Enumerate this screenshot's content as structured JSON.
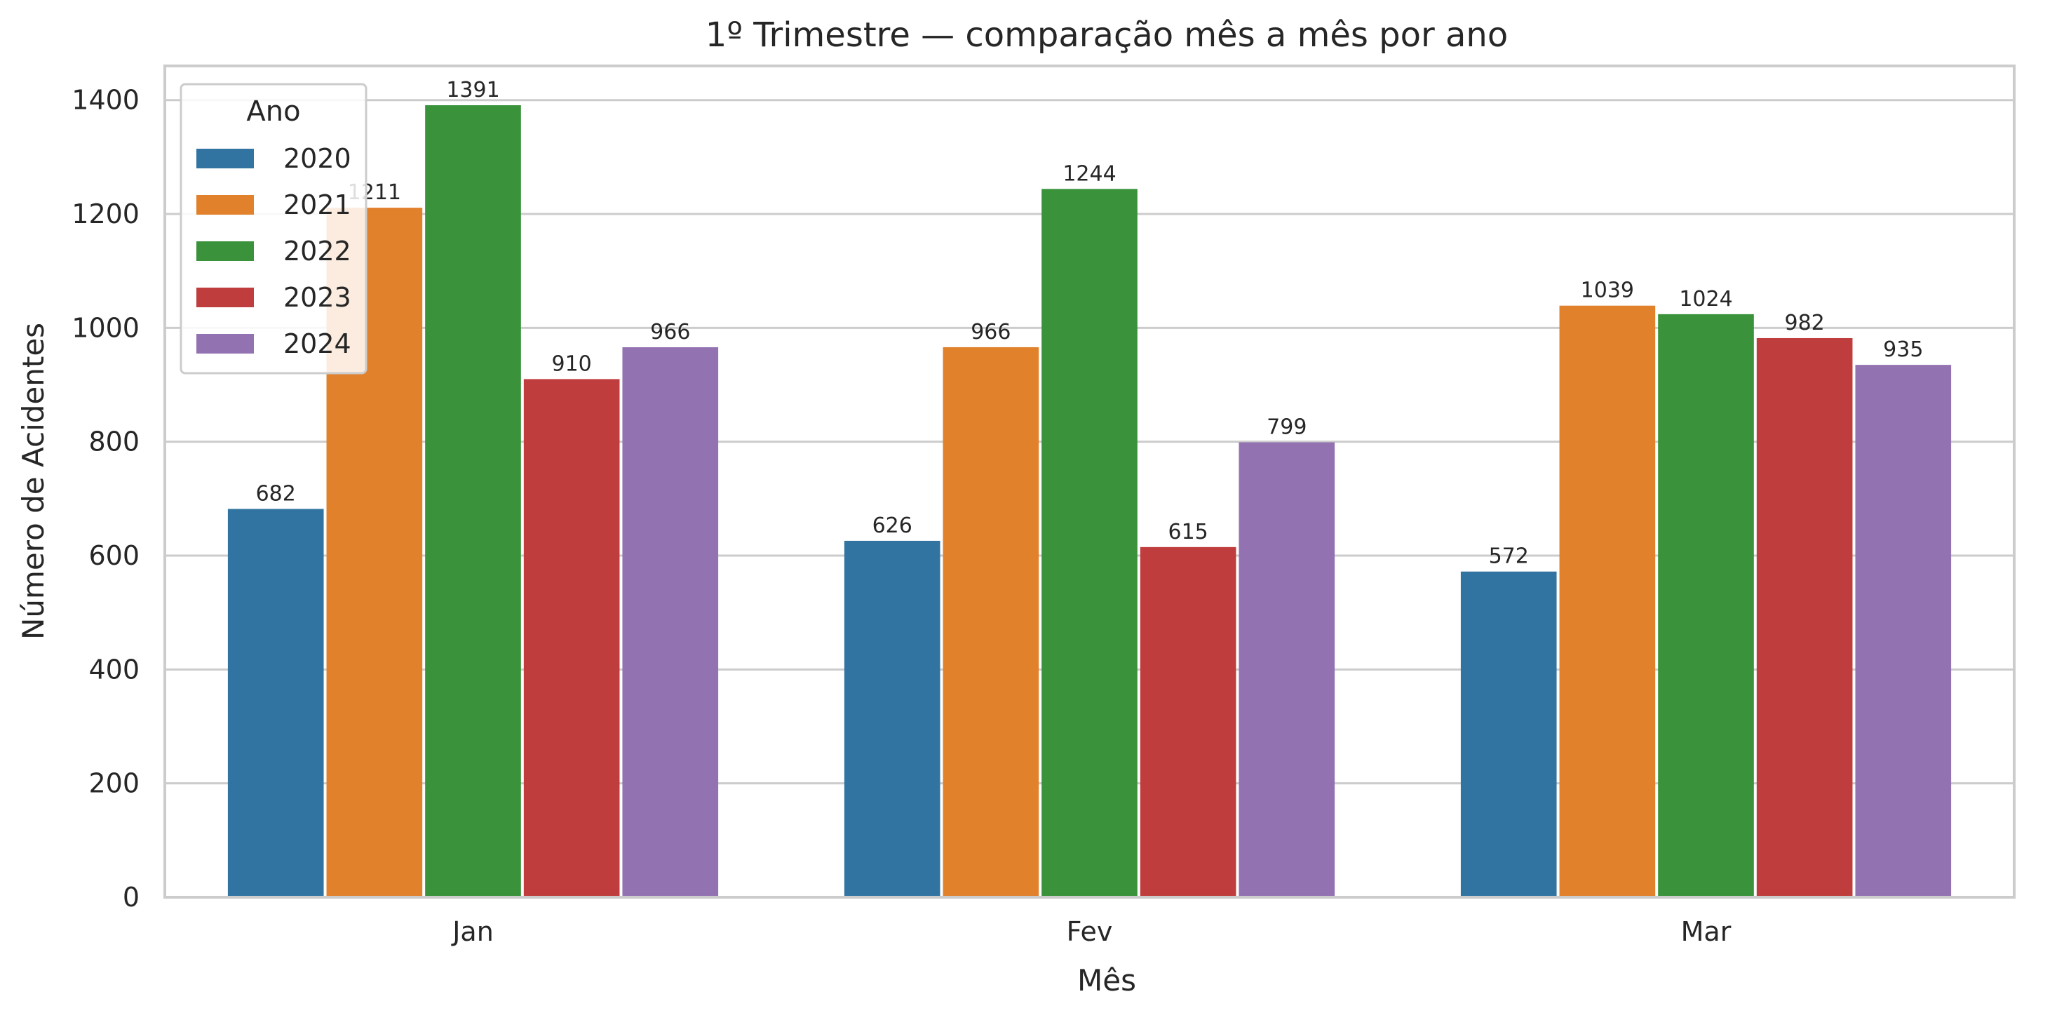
{
  "chart_data": {
    "type": "bar",
    "title": "1º Trimestre — comparação mês a mês por ano",
    "xlabel": "Mês",
    "ylabel": "Número de Acidentes",
    "categories": [
      "Jan",
      "Fev",
      "Mar"
    ],
    "ylim": [
      0,
      1460
    ],
    "yticks": [
      0,
      200,
      400,
      600,
      800,
      1000,
      1200,
      1400
    ],
    "grid": "y",
    "legend": {
      "title": "Ano",
      "placement": "top-left"
    },
    "series": [
      {
        "name": "2020",
        "color": "#3274a1",
        "values": [
          682,
          626,
          572
        ]
      },
      {
        "name": "2021",
        "color": "#e1812c",
        "values": [
          1211,
          966,
          1039
        ]
      },
      {
        "name": "2022",
        "color": "#3a923a",
        "values": [
          1391,
          1244,
          1024
        ]
      },
      {
        "name": "2023",
        "color": "#c03d3e",
        "values": [
          910,
          615,
          982
        ]
      },
      {
        "name": "2024",
        "color": "#9372b2",
        "values": [
          966,
          799,
          935
        ]
      }
    ]
  }
}
